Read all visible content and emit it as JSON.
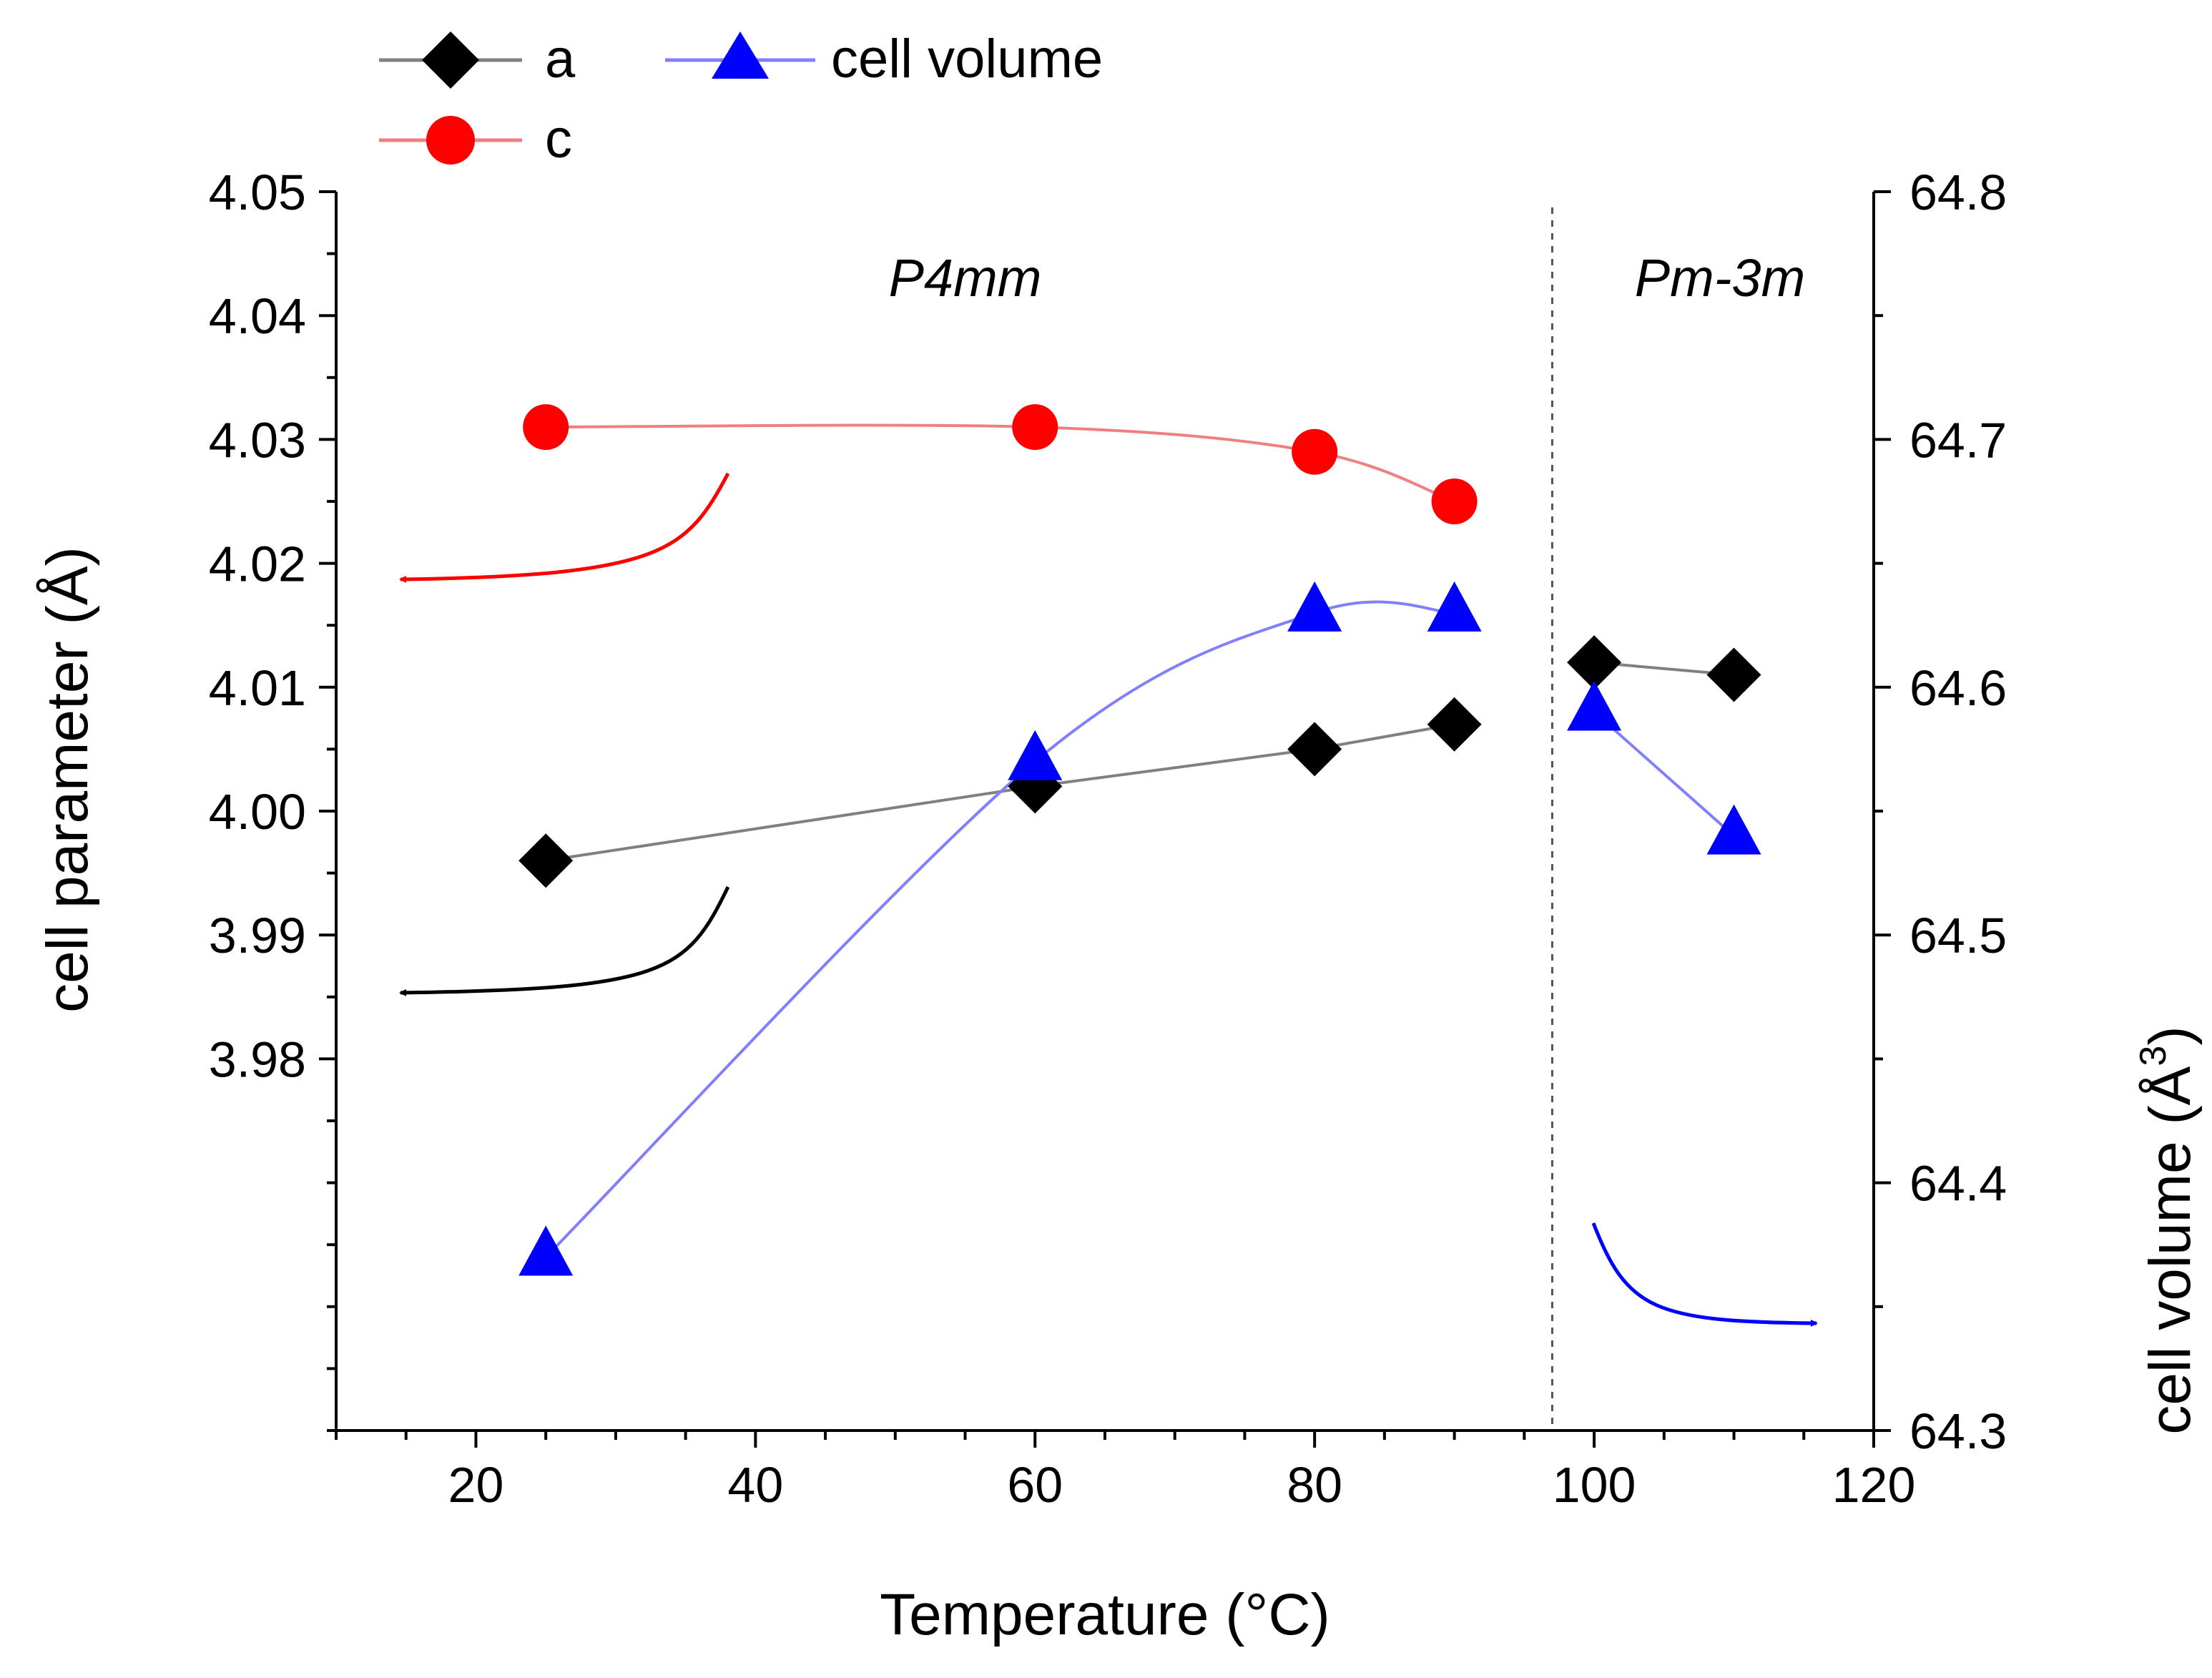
{
  "chart_data": {
    "type": "scatter",
    "title": "",
    "xlabel": "Temperature (°C)",
    "ylabel": "cell parameter (Å)",
    "y2label_main": "cell volume (Å",
    "y2label_sup": "3",
    "y2label_close": ")",
    "xlim": [
      10,
      120
    ],
    "ylim": [
      3.95,
      4.05
    ],
    "y2lim": [
      64.3,
      64.8
    ],
    "x_ticks": [
      20,
      40,
      60,
      80,
      100,
      120
    ],
    "x_tick_labels": [
      "20",
      "40",
      "60",
      "80",
      "100",
      "120"
    ],
    "y_ticks": [
      3.98,
      3.99,
      4.0,
      4.01,
      4.02,
      4.03,
      4.04,
      4.05
    ],
    "y_tick_labels": [
      "3.98",
      "3.99",
      "4.00",
      "4.01",
      "4.02",
      "4.03",
      "4.04",
      "4.05"
    ],
    "y2_ticks": [
      64.3,
      64.4,
      64.5,
      64.6,
      64.7,
      64.8
    ],
    "y2_tick_labels": [
      "64.3",
      "64.4",
      "64.5",
      "64.6",
      "64.7",
      "64.8"
    ],
    "phase_boundary_x": 97,
    "phase_labels": [
      {
        "text": "P4mm",
        "x": 55,
        "y": 4.043
      },
      {
        "text": "Pm-3m",
        "x": 109,
        "y": 4.043
      }
    ],
    "legend_position": "top-left",
    "series": [
      {
        "name": "a",
        "axis": "left",
        "marker": "diamond",
        "color": "#000000",
        "line_color": "#808080",
        "segments": [
          {
            "x": [
              25,
              60,
              80,
              90
            ],
            "y": [
              3.996,
              4.002,
              4.005,
              4.007
            ]
          },
          {
            "x": [
              100,
              110
            ],
            "y": [
              4.012,
              4.011
            ]
          }
        ]
      },
      {
        "name": "c",
        "axis": "left",
        "marker": "circle",
        "color": "#ff0000",
        "line_color": "#f08080",
        "segments": [
          {
            "x": [
              25,
              60,
              80,
              90
            ],
            "y": [
              4.031,
              4.031,
              4.029,
              4.025
            ]
          }
        ]
      },
      {
        "name": "cell volume",
        "axis": "right",
        "marker": "triangle",
        "color": "#0000ff",
        "line_color": "#8080ff",
        "segments": [
          {
            "x": [
              25,
              60,
              80,
              90
            ],
            "y": [
              64.37,
              64.57,
              64.63,
              64.63
            ]
          },
          {
            "x": [
              100,
              110
            ],
            "y": [
              64.59,
              64.54
            ]
          }
        ]
      }
    ],
    "axis_indicators": [
      {
        "series": "c",
        "points_to": "left"
      },
      {
        "series": "a",
        "points_to": "left"
      },
      {
        "series": "cell volume",
        "points_to": "right"
      }
    ]
  }
}
